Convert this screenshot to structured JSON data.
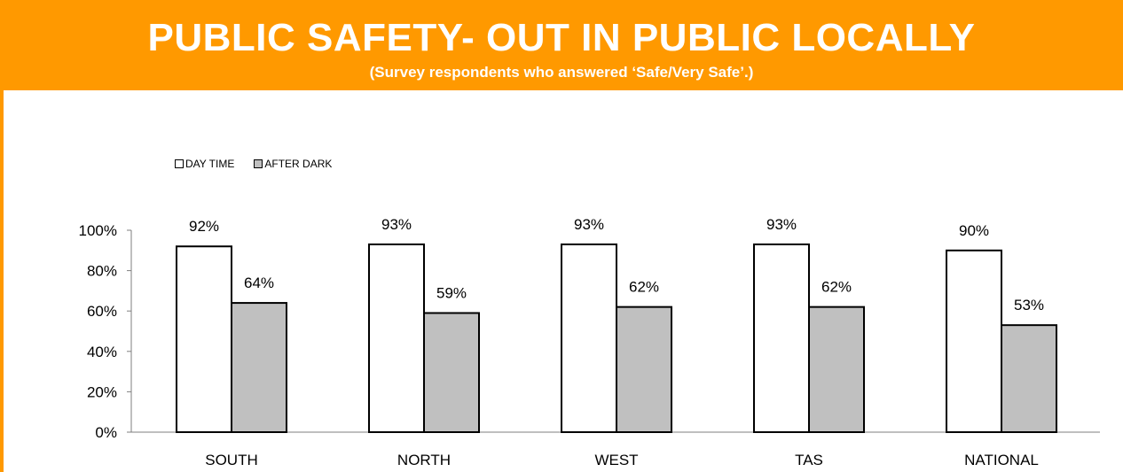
{
  "header": {
    "title": "PUBLIC SAFETY- OUT IN PUBLIC LOCALLY",
    "subtitle": "(Survey respondents who answered ‘Safe/Very Safe’.)"
  },
  "colors": {
    "header_bg": "#ff9900",
    "header_text": "#ffffff",
    "day_fill": "#ffffff",
    "dark_fill": "#c0c0c0",
    "outline": "#000000"
  },
  "chart_data": {
    "type": "bar",
    "title": "PUBLIC SAFETY- OUT IN PUBLIC LOCALLY",
    "subtitle": "(Survey respondents who answered ‘Safe/Very Safe’.)",
    "categories": [
      "SOUTH",
      "NORTH",
      "WEST",
      "TAS",
      "NATIONAL"
    ],
    "series": [
      {
        "name": "DAY TIME",
        "values": [
          92,
          93,
          93,
          93,
          90
        ],
        "labels": [
          "92%",
          "93%",
          "93%",
          "93%",
          "90%"
        ]
      },
      {
        "name": "AFTER DARK",
        "values": [
          64,
          59,
          62,
          62,
          53
        ],
        "labels": [
          "64%",
          "59%",
          "62%",
          "62%",
          "53%"
        ]
      }
    ],
    "ylim": [
      0,
      100
    ],
    "yticks": [
      "0%",
      "20%",
      "40%",
      "60%",
      "80%",
      "100%"
    ],
    "xlabel": "",
    "ylabel": "",
    "grid": false,
    "legend_position": "top-left"
  }
}
